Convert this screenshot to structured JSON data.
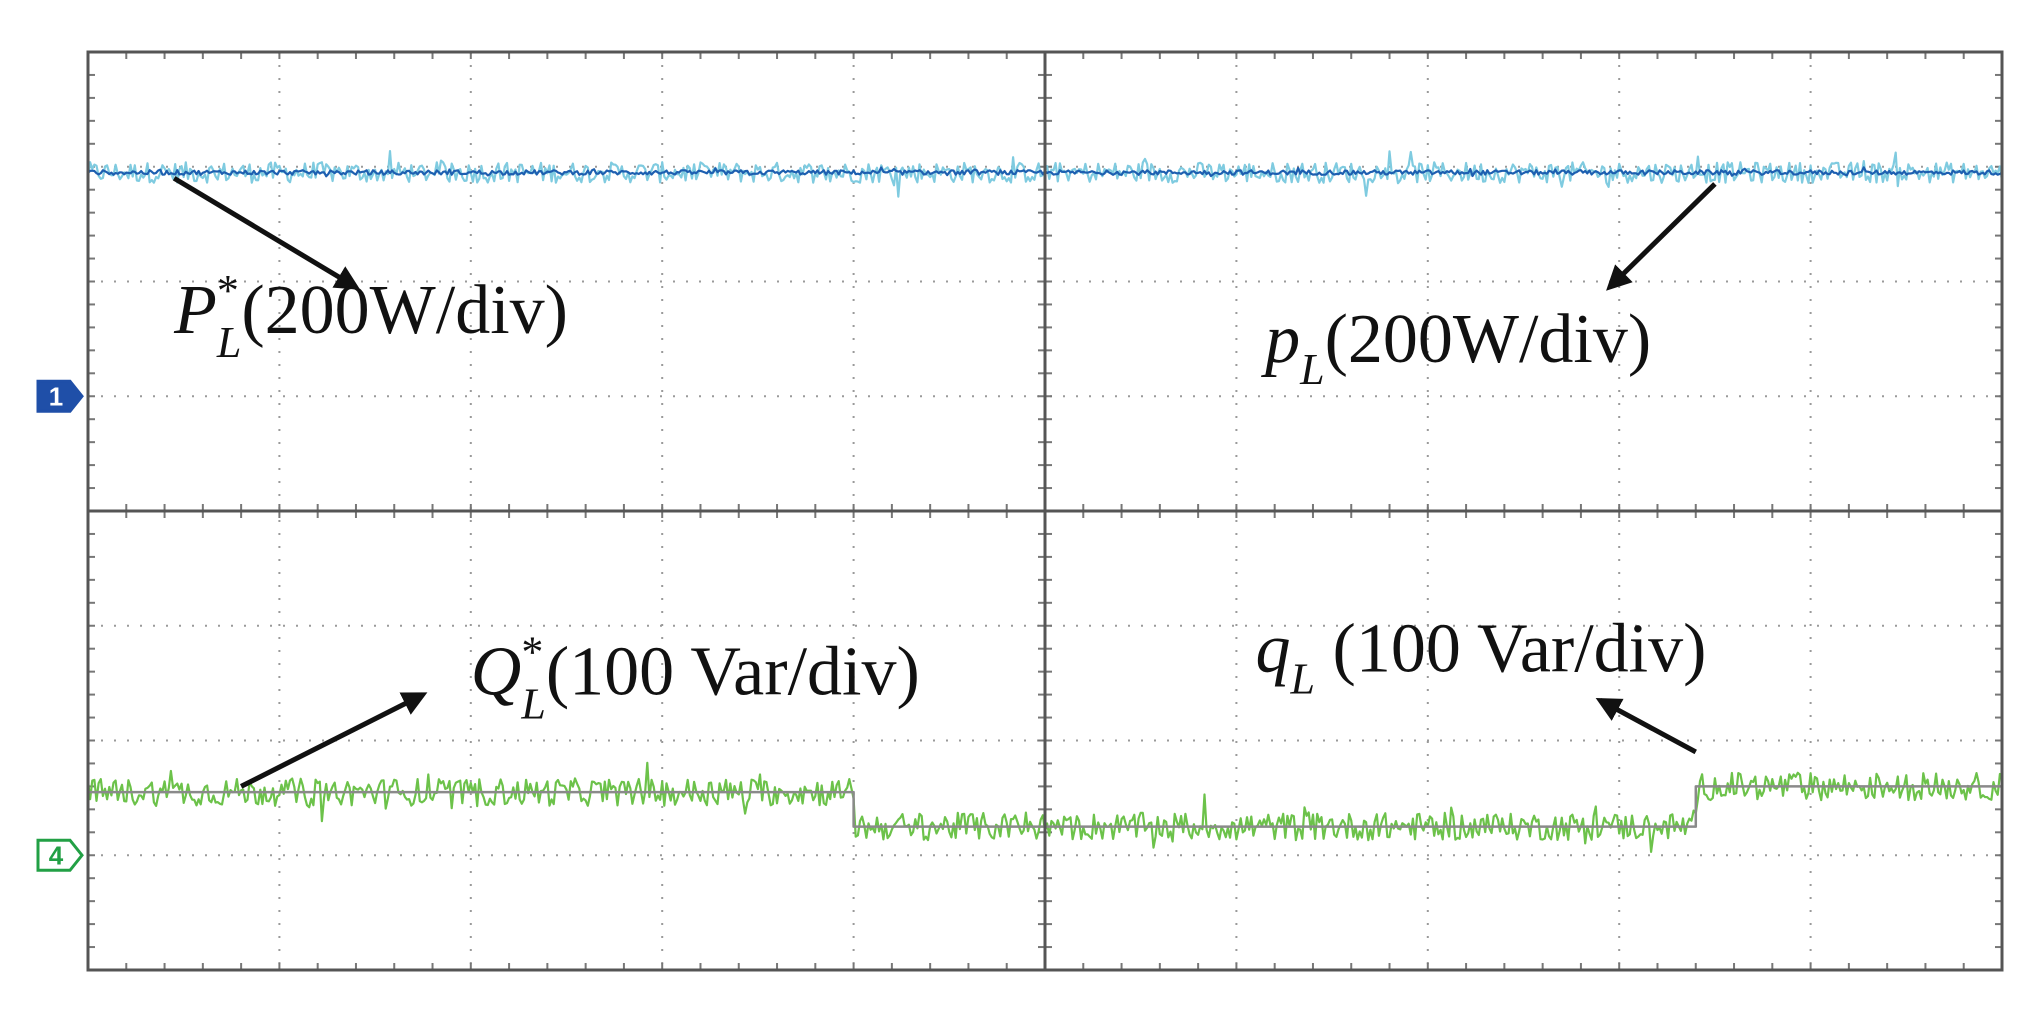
{
  "chart_data": {
    "type": "line",
    "title": "",
    "xlabel": "",
    "ylabel": "",
    "x_divisions": 10,
    "y_divisions": 8,
    "xlim": [
      0,
      10
    ],
    "ylim": [
      0,
      8
    ],
    "grid": true,
    "channel_markers": [
      {
        "label": "1",
        "y": 5.0,
        "color": "#1f4fa8"
      },
      {
        "label": "4",
        "y": 1.0,
        "color": "#22a045"
      }
    ],
    "series": [
      {
        "color": "#7fcbe0",
        "noise": 0.09,
        "points": [
          [
            0,
            6.95
          ],
          [
            10,
            6.95
          ]
        ]
      },
      {
        "color": "#1d5fb0",
        "noise": 0.02,
        "points": [
          [
            0,
            6.95
          ],
          [
            10,
            6.95
          ]
        ]
      },
      {
        "color": "#6cc24a",
        "noise": 0.12,
        "points": [
          [
            0,
            1.55
          ],
          [
            4.0,
            1.55
          ],
          [
            4.0,
            1.25
          ],
          [
            8.4,
            1.25
          ],
          [
            8.4,
            1.6
          ],
          [
            10,
            1.6
          ]
        ]
      },
      {
        "color": "#8a8a8a",
        "noise": 0.0,
        "points": [
          [
            0,
            1.55
          ],
          [
            4.0,
            1.55
          ],
          [
            4.0,
            1.25
          ],
          [
            8.4,
            1.25
          ],
          [
            8.4,
            1.6
          ],
          [
            10,
            1.6
          ]
        ]
      }
    ],
    "annotations": [
      {
        "base": "P",
        "sub": "L",
        "sup": "*",
        "unit": "(200W/div)",
        "text_at": [
          0.45,
          5.55
        ],
        "arrow_from": [
          0.45,
          6.9
        ],
        "arrow_to": [
          1.4,
          5.95
        ]
      },
      {
        "base": "p",
        "sub": "L",
        "sup": "",
        "unit": "(200W/div)",
        "text_at": [
          6.15,
          5.3
        ],
        "arrow_from": [
          8.5,
          6.85
        ],
        "arrow_to": [
          7.95,
          5.95
        ]
      },
      {
        "base": "Q",
        "sub": "L",
        "sup": "*",
        "unit": "(100 Var/div)",
        "text_at": [
          2.0,
          2.4
        ],
        "arrow_from": [
          0.8,
          1.6
        ],
        "arrow_to": [
          1.75,
          2.4
        ]
      },
      {
        "base": "q",
        "sub": "L",
        "sup": "",
        "unit": " (100 Var/div)",
        "text_at": [
          6.1,
          2.6
        ],
        "arrow_from": [
          8.4,
          1.9
        ],
        "arrow_to": [
          7.9,
          2.35
        ]
      }
    ]
  }
}
